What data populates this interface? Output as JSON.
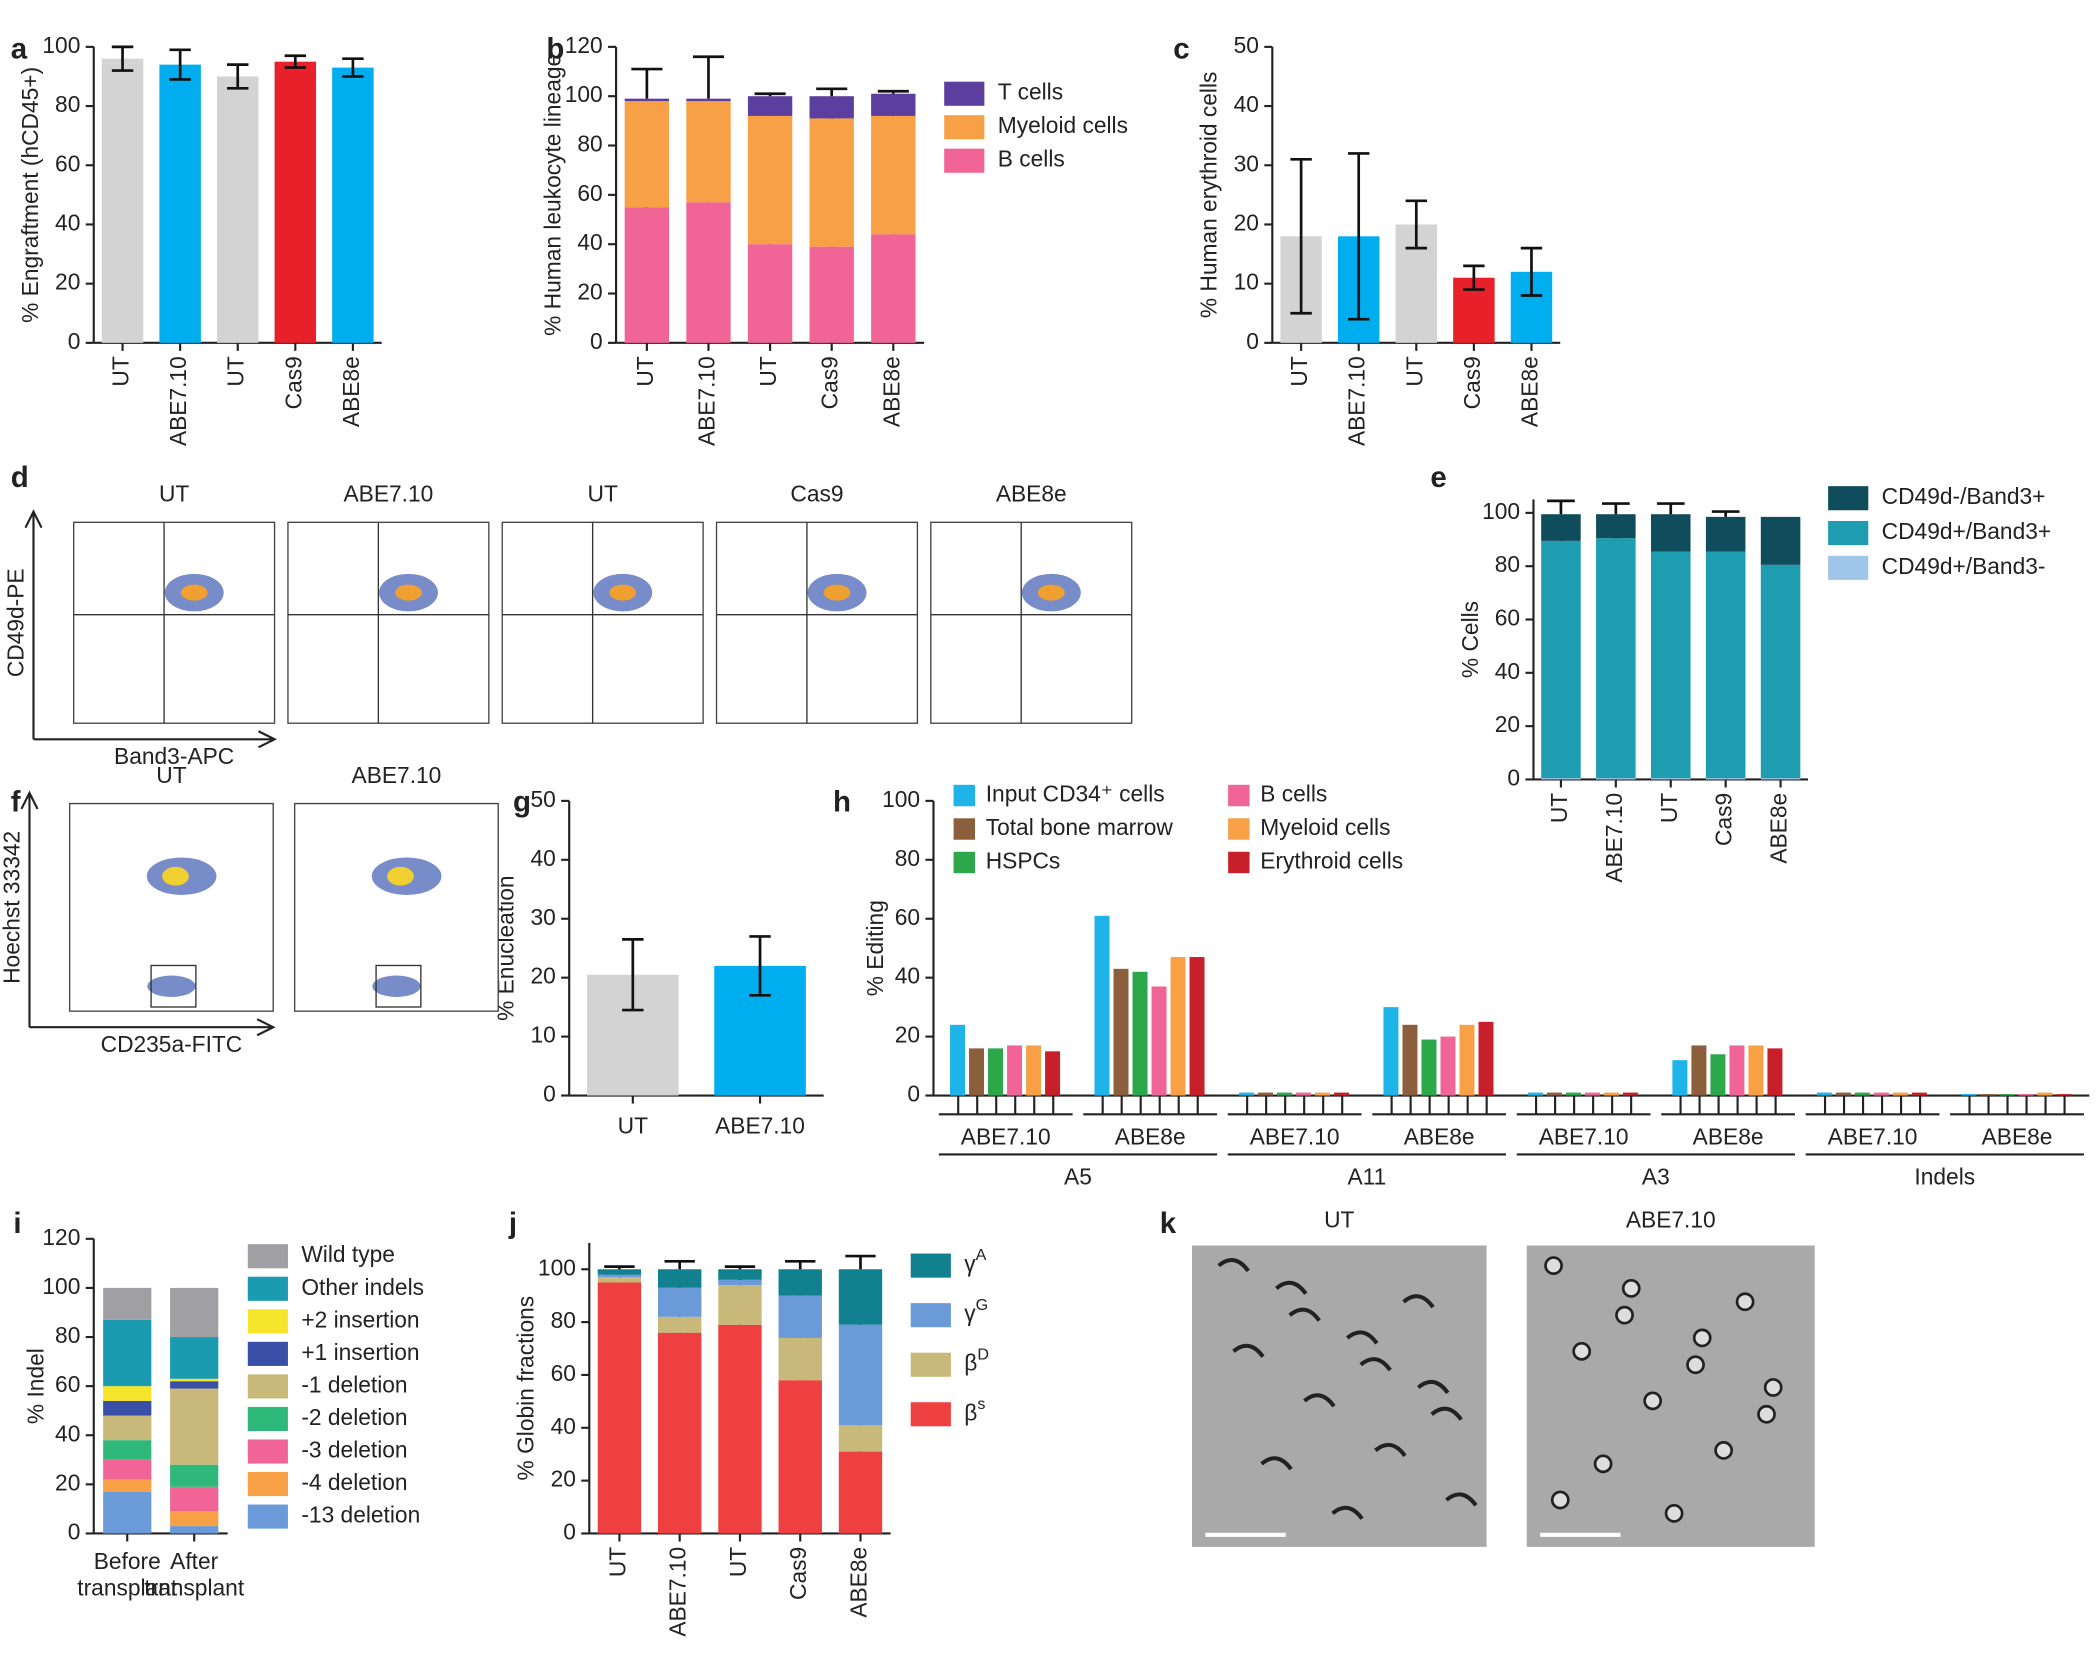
{
  "chart_data": [
    {
      "panel": "a",
      "type": "bar",
      "y_label": "% Engraftment (hCD45+)",
      "categories": [
        "UT",
        "ABE7.10",
        "UT",
        "Cas9",
        "ABE8e"
      ],
      "values": [
        96,
        94,
        90,
        95,
        93
      ],
      "errors": [
        4,
        5,
        4,
        2,
        3
      ],
      "colors": [
        "#d3d3d3",
        "#00aeef",
        "#d3d3d3",
        "#e8202a",
        "#00aeef"
      ],
      "ylim": [
        0,
        100
      ],
      "yticks": [
        0,
        20,
        40,
        60,
        80,
        100
      ]
    },
    {
      "panel": "b",
      "type": "stacked_bar",
      "y_label": "% Human leukocyte lineage",
      "categories": [
        "UT",
        "ABE7.10",
        "UT",
        "Cas9",
        "ABE8e"
      ],
      "ylim": [
        0,
        120
      ],
      "yticks": [
        0,
        20,
        40,
        60,
        80,
        100,
        120
      ],
      "legend": "right",
      "series": [
        {
          "name": "B cells",
          "color": "#f06595",
          "values": [
            55,
            57,
            40,
            39,
            44
          ],
          "errors": [
            14,
            19,
            8,
            6,
            1
          ]
        },
        {
          "name": "Myeloid cells",
          "color": "#f8a046",
          "values": [
            43,
            41,
            52,
            52,
            48
          ],
          "errors": [
            0,
            0,
            1,
            2,
            1
          ]
        },
        {
          "name": "T cells",
          "color": "#5c3e9e",
          "values": [
            1,
            1,
            8,
            9,
            9
          ],
          "errors": [
            12,
            17,
            1,
            3,
            1
          ]
        }
      ]
    },
    {
      "panel": "c",
      "type": "bar",
      "y_label": "% Human erythroid cells",
      "categories": [
        "UT",
        "ABE7.10",
        "UT",
        "Cas9",
        "ABE8e"
      ],
      "values": [
        18,
        18,
        20,
        11,
        12
      ],
      "errors": [
        13,
        14,
        4,
        2,
        4
      ],
      "colors": [
        "#d3d3d3",
        "#00aeef",
        "#d3d3d3",
        "#e8202a",
        "#00aeef"
      ],
      "ylim": [
        0,
        50
      ],
      "yticks": [
        0,
        10,
        20,
        30,
        40,
        50
      ]
    },
    {
      "panel": "e",
      "type": "stacked_bar",
      "y_label": "% Cells",
      "categories": [
        "UT",
        "ABE7.10",
        "UT",
        "Cas9",
        "ABE8e"
      ],
      "ylim": [
        0,
        105
      ],
      "yticks": [
        0,
        20,
        40,
        60,
        80,
        100
      ],
      "legend": "right",
      "series": [
        {
          "name": "CD49d+/Band3-",
          "color": "#9fc5e8",
          "values": [
            0.5,
            0.5,
            0.5,
            0.5,
            0.5
          ],
          "errors": [
            3,
            3,
            2,
            1,
            0
          ]
        },
        {
          "name": "CD49d+/Band3+",
          "color": "#1f9db0",
          "values": [
            89,
            90,
            85,
            85,
            80
          ],
          "errors": [
            3,
            2,
            3,
            1,
            0
          ]
        },
        {
          "name": "CD49d-/Band3+",
          "color": "#0f4d5c",
          "values": [
            10,
            9,
            14,
            13,
            18
          ],
          "errors": [
            5,
            4,
            4,
            2,
            0
          ]
        }
      ]
    },
    {
      "panel": "g",
      "type": "bar",
      "y_label": "% Enucleation",
      "categories": [
        "UT",
        "ABE7.10"
      ],
      "values": [
        20.5,
        22
      ],
      "errors": [
        6,
        5
      ],
      "colors": [
        "#d3d3d3",
        "#00aeef"
      ],
      "ylim": [
        0,
        50
      ],
      "yticks": [
        0,
        10,
        20,
        30,
        40,
        50
      ]
    },
    {
      "panel": "h",
      "type": "grouped_bar",
      "y_label": "% Editing",
      "categories": [
        "ABE7.10",
        "ABE8e",
        "ABE7.10",
        "ABE8e",
        "ABE7.10",
        "ABE8e",
        "ABE7.10",
        "ABE8e"
      ],
      "sites": [
        "A5",
        "A11",
        "A3",
        "Indels"
      ],
      "ylim": [
        0,
        100
      ],
      "yticks": [
        0,
        20,
        40,
        60,
        80,
        100
      ],
      "legend": "top",
      "series": [
        {
          "name": "Input CD34⁺ cells",
          "color": "#1eb4ea",
          "values": [
            24,
            61,
            1,
            30,
            1,
            12,
            1,
            0.5
          ]
        },
        {
          "name": "Total bone marrow",
          "color": "#8b5e3c",
          "values": [
            16,
            43,
            1,
            24,
            1,
            17,
            1,
            0.5
          ]
        },
        {
          "name": "HSPCs",
          "color": "#2ca84a",
          "values": [
            16,
            42,
            1,
            19,
            1,
            14,
            1,
            0.5
          ]
        },
        {
          "name": "B cells",
          "color": "#f06595",
          "values": [
            17,
            37,
            1,
            20,
            1,
            17,
            1,
            0.5
          ]
        },
        {
          "name": "Myeloid cells",
          "color": "#f8a046",
          "values": [
            17,
            47,
            1,
            24,
            1,
            17,
            1,
            1
          ]
        },
        {
          "name": "Erythroid cells",
          "color": "#c8202a",
          "values": [
            15,
            47,
            1,
            25,
            1,
            16,
            1,
            0.5
          ]
        }
      ]
    },
    {
      "panel": "i",
      "type": "stacked_bar",
      "y_label": "% Indel",
      "categories": [
        [
          "Before",
          "transplant"
        ],
        [
          "After",
          "transplant"
        ]
      ],
      "ylim": [
        0,
        120
      ],
      "yticks": [
        0,
        20,
        40,
        60,
        80,
        100,
        120
      ],
      "legend": "right",
      "series": [
        {
          "name": "-13 deletion",
          "color": "#6a9bd8",
          "values": [
            17,
            3
          ]
        },
        {
          "name": "-4 deletion",
          "color": "#f8a046",
          "values": [
            5,
            6
          ]
        },
        {
          "name": "-3 deletion",
          "color": "#f06595",
          "values": [
            8,
            10
          ]
        },
        {
          "name": "-2 deletion",
          "color": "#2eb87a",
          "values": [
            8,
            9
          ]
        },
        {
          "name": "-1 deletion",
          "color": "#c8b97a",
          "values": [
            10,
            31
          ]
        },
        {
          "name": "+1 insertion",
          "color": "#3a4fa8",
          "values": [
            6,
            3
          ]
        },
        {
          "name": "+2 insertion",
          "color": "#f5e52a",
          "values": [
            6,
            1
          ]
        },
        {
          "name": "Other indels",
          "color": "#1a9bb0",
          "values": [
            27,
            17
          ]
        },
        {
          "name": "Wild type",
          "color": "#a0a0a4",
          "values": [
            13,
            20
          ]
        }
      ]
    },
    {
      "panel": "j",
      "type": "stacked_bar",
      "y_label": "% Globin fractions",
      "categories": [
        "UT",
        "ABE7.10",
        "UT",
        "Cas9",
        "ABE8e"
      ],
      "ylim": [
        0,
        110
      ],
      "yticks": [
        0,
        20,
        40,
        60,
        80,
        100
      ],
      "legend": "right",
      "series": [
        {
          "name": "β",
          "sup": "s",
          "color": "#ee4040",
          "values": [
            95,
            76,
            79,
            58,
            31
          ],
          "errors": [
            1,
            4,
            4,
            4,
            8
          ]
        },
        {
          "name": "β",
          "sup": "D",
          "color": "#c8b97a",
          "values": [
            2,
            6,
            15,
            16,
            10
          ],
          "errors": [
            1,
            3,
            3,
            3,
            3
          ]
        },
        {
          "name": "γ",
          "sup": "G",
          "color": "#6a9bd8",
          "values": [
            1,
            11,
            2,
            16,
            38
          ],
          "errors": [
            1,
            3,
            1,
            4,
            9
          ]
        },
        {
          "name": "γ",
          "sup": "A",
          "color": "#11808f",
          "values": [
            2,
            7,
            4,
            10,
            21
          ],
          "errors": [
            1,
            3,
            1,
            3,
            5
          ]
        }
      ]
    }
  ],
  "flow_panels": [
    {
      "letter": "d",
      "titles": [
        "UT",
        "ABE7.10",
        "UT",
        "Cas9",
        "ABE8e"
      ],
      "y_label": "CD49d-PE",
      "x_label": "Band3-APC"
    },
    {
      "letter": "f",
      "titles": [
        "UT",
        "ABE7.10"
      ],
      "y_label": "Hoechst 33342",
      "x_label": "CD235a-FITC"
    }
  ],
  "image_panels": {
    "letter": "k",
    "titles": [
      "UT",
      "ABE7.10"
    ]
  }
}
